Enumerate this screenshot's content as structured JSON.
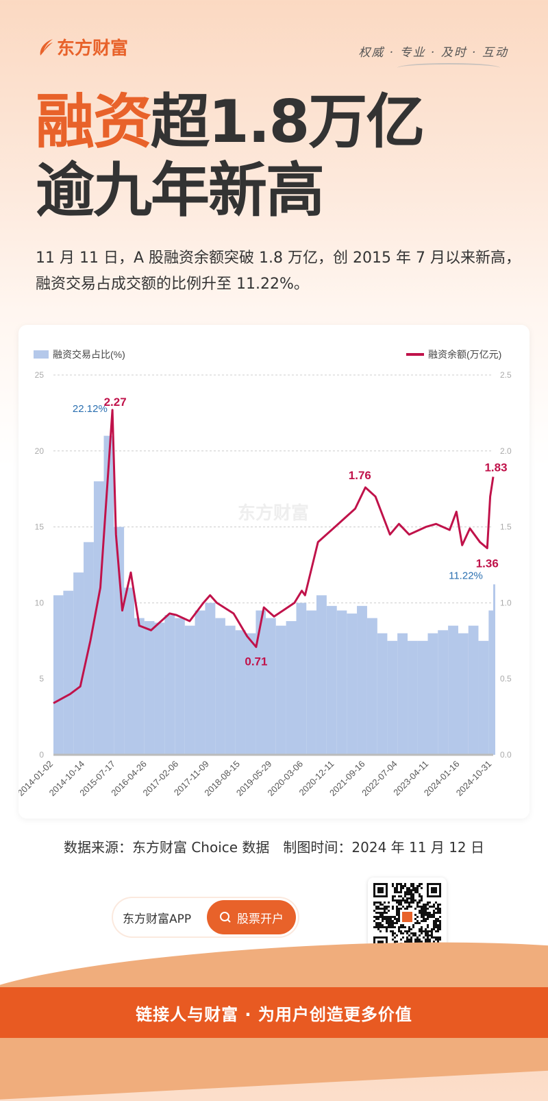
{
  "header": {
    "logo_text": "东方财富",
    "slogan": "权威 · 专业 · 及时 · 互动"
  },
  "title": {
    "highlight": "融资",
    "line1_rest": "超1.8万亿",
    "line2": "逾九年新高"
  },
  "subtitle": "11 月 11 日，A 股融资余额突破 1.8 万亿，创 2015 年 7 月以来新高，融资交易占成交额的比例升至 11.22%。",
  "chart_data": {
    "type": "bar+line",
    "watermark": "东方财富",
    "grid": true,
    "legend": {
      "bar": "融资交易占比(%)",
      "line": "融资余额(万亿元)",
      "placement": "top"
    },
    "y_left": {
      "range": [
        0,
        25
      ],
      "ticks": [
        "0",
        "5",
        "10",
        "15",
        "20",
        "25"
      ]
    },
    "y_right": {
      "range": [
        0,
        2.5
      ],
      "ticks": [
        "0.0",
        "0.5",
        "1.0",
        "1.5",
        "2.0",
        "2.5"
      ]
    },
    "x_ticks": [
      "2014-01-02",
      "2014-10-14",
      "2015-07-17",
      "2016-04-26",
      "2017-02-06",
      "2017-11-09",
      "2018-08-15",
      "2019-05-29",
      "2020-03-06",
      "2020-12-11",
      "2021-09-16",
      "2022-07-04",
      "2023-04-11",
      "2024-01-16",
      "2024-10-31"
    ],
    "x_range": [
      "2014-01-02",
      "2024-11-11"
    ],
    "colors": {
      "bar": "#b4c8ea",
      "line": "#c0124a",
      "bar_label": "#2a6fb0"
    },
    "bar_series": {
      "name": "融资交易占比(%)",
      "points": [
        [
          "2014-01-02",
          10.5
        ],
        [
          "2014-04-01",
          10.8
        ],
        [
          "2014-07-01",
          12
        ],
        [
          "2014-10-01",
          14
        ],
        [
          "2015-01-01",
          18
        ],
        [
          "2015-04-01",
          21
        ],
        [
          "2015-07-01",
          15
        ],
        [
          "2015-10-01",
          11
        ],
        [
          "2016-01-01",
          9
        ],
        [
          "2016-04-01",
          8.8
        ],
        [
          "2016-07-01",
          8.7
        ],
        [
          "2016-10-01",
          9.2
        ],
        [
          "2017-01-01",
          9
        ],
        [
          "2017-04-01",
          8.5
        ],
        [
          "2017-07-01",
          9.5
        ],
        [
          "2017-10-01",
          10
        ],
        [
          "2018-01-01",
          9
        ],
        [
          "2018-04-01",
          8.5
        ],
        [
          "2018-07-01",
          8.2
        ],
        [
          "2018-10-01",
          8
        ],
        [
          "2019-01-01",
          9.5
        ],
        [
          "2019-04-01",
          9
        ],
        [
          "2019-07-01",
          8.5
        ],
        [
          "2019-10-01",
          8.8
        ],
        [
          "2020-01-01",
          10
        ],
        [
          "2020-04-01",
          9.5
        ],
        [
          "2020-07-01",
          10.5
        ],
        [
          "2020-10-01",
          9.8
        ],
        [
          "2021-01-01",
          9.5
        ],
        [
          "2021-04-01",
          9.3
        ],
        [
          "2021-07-01",
          9.8
        ],
        [
          "2021-10-01",
          9
        ],
        [
          "2022-01-01",
          8
        ],
        [
          "2022-04-01",
          7.5
        ],
        [
          "2022-07-01",
          8
        ],
        [
          "2022-10-01",
          7.5
        ],
        [
          "2023-01-01",
          7.5
        ],
        [
          "2023-04-01",
          8
        ],
        [
          "2023-07-01",
          8.2
        ],
        [
          "2023-10-01",
          8.5
        ],
        [
          "2024-01-01",
          8
        ],
        [
          "2024-04-01",
          8.5
        ],
        [
          "2024-07-01",
          7.5
        ],
        [
          "2024-10-01",
          9.5
        ],
        [
          "2024-11-11",
          11.22
        ]
      ]
    },
    "line_series": {
      "name": "融资余额(万亿元)",
      "points": [
        [
          "2014-01-02",
          0.34
        ],
        [
          "2014-06-01",
          0.4
        ],
        [
          "2014-09-01",
          0.45
        ],
        [
          "2014-12-01",
          0.75
        ],
        [
          "2015-03-01",
          1.1
        ],
        [
          "2015-06-18",
          2.27
        ],
        [
          "2015-07-20",
          1.45
        ],
        [
          "2015-09-15",
          0.95
        ],
        [
          "2015-12-01",
          1.2
        ],
        [
          "2016-02-15",
          0.85
        ],
        [
          "2016-06-01",
          0.82
        ],
        [
          "2016-11-15",
          0.93
        ],
        [
          "2017-01-15",
          0.92
        ],
        [
          "2017-05-15",
          0.88
        ],
        [
          "2017-09-15",
          1.0
        ],
        [
          "2017-11-15",
          1.05
        ],
        [
          "2018-01-15",
          1.0
        ],
        [
          "2018-06-15",
          0.93
        ],
        [
          "2018-10-15",
          0.78
        ],
        [
          "2019-01-04",
          0.71
        ],
        [
          "2019-03-15",
          0.97
        ],
        [
          "2019-06-15",
          0.91
        ],
        [
          "2019-12-15",
          1.0
        ],
        [
          "2020-02-20",
          1.08
        ],
        [
          "2020-03-20",
          1.05
        ],
        [
          "2020-07-15",
          1.4
        ],
        [
          "2020-12-15",
          1.5
        ],
        [
          "2021-06-15",
          1.62
        ],
        [
          "2021-09-15",
          1.76
        ],
        [
          "2021-12-15",
          1.7
        ],
        [
          "2022-04-25",
          1.45
        ],
        [
          "2022-07-15",
          1.52
        ],
        [
          "2022-10-15",
          1.45
        ],
        [
          "2023-03-15",
          1.5
        ],
        [
          "2023-06-15",
          1.52
        ],
        [
          "2023-10-15",
          1.48
        ],
        [
          "2023-12-15",
          1.6
        ],
        [
          "2024-02-05",
          1.38
        ],
        [
          "2024-04-15",
          1.49
        ],
        [
          "2024-07-15",
          1.4
        ],
        [
          "2024-09-18",
          1.36
        ],
        [
          "2024-10-15",
          1.7
        ],
        [
          "2024-11-11",
          1.83
        ]
      ]
    },
    "annotations": [
      {
        "text": "22.12%",
        "series": "bar",
        "date": "2015-06-01",
        "value": 22.12
      },
      {
        "text": "2.27",
        "series": "line",
        "date": "2015-06-18",
        "value": 2.27
      },
      {
        "text": "0.71",
        "series": "line",
        "date": "2019-01-04",
        "value": 0.71
      },
      {
        "text": "1.76",
        "series": "line",
        "date": "2021-09-15",
        "value": 1.76
      },
      {
        "text": "1.36",
        "series": "line",
        "date": "2024-09-18",
        "value": 1.36
      },
      {
        "text": "1.83",
        "series": "line",
        "date": "2024-11-11",
        "value": 1.83
      },
      {
        "text": "11.22%",
        "series": "bar",
        "date": "2024-11-11",
        "value": 11.22
      }
    ]
  },
  "source": "数据来源：东方财富 Choice 数据　制图时间：2024 年 11 月 12 日",
  "cta": {
    "app_label": "东方财富APP",
    "button_label": "股票开户"
  },
  "footer": "链接人与财富 · 为用户创造更多价值"
}
